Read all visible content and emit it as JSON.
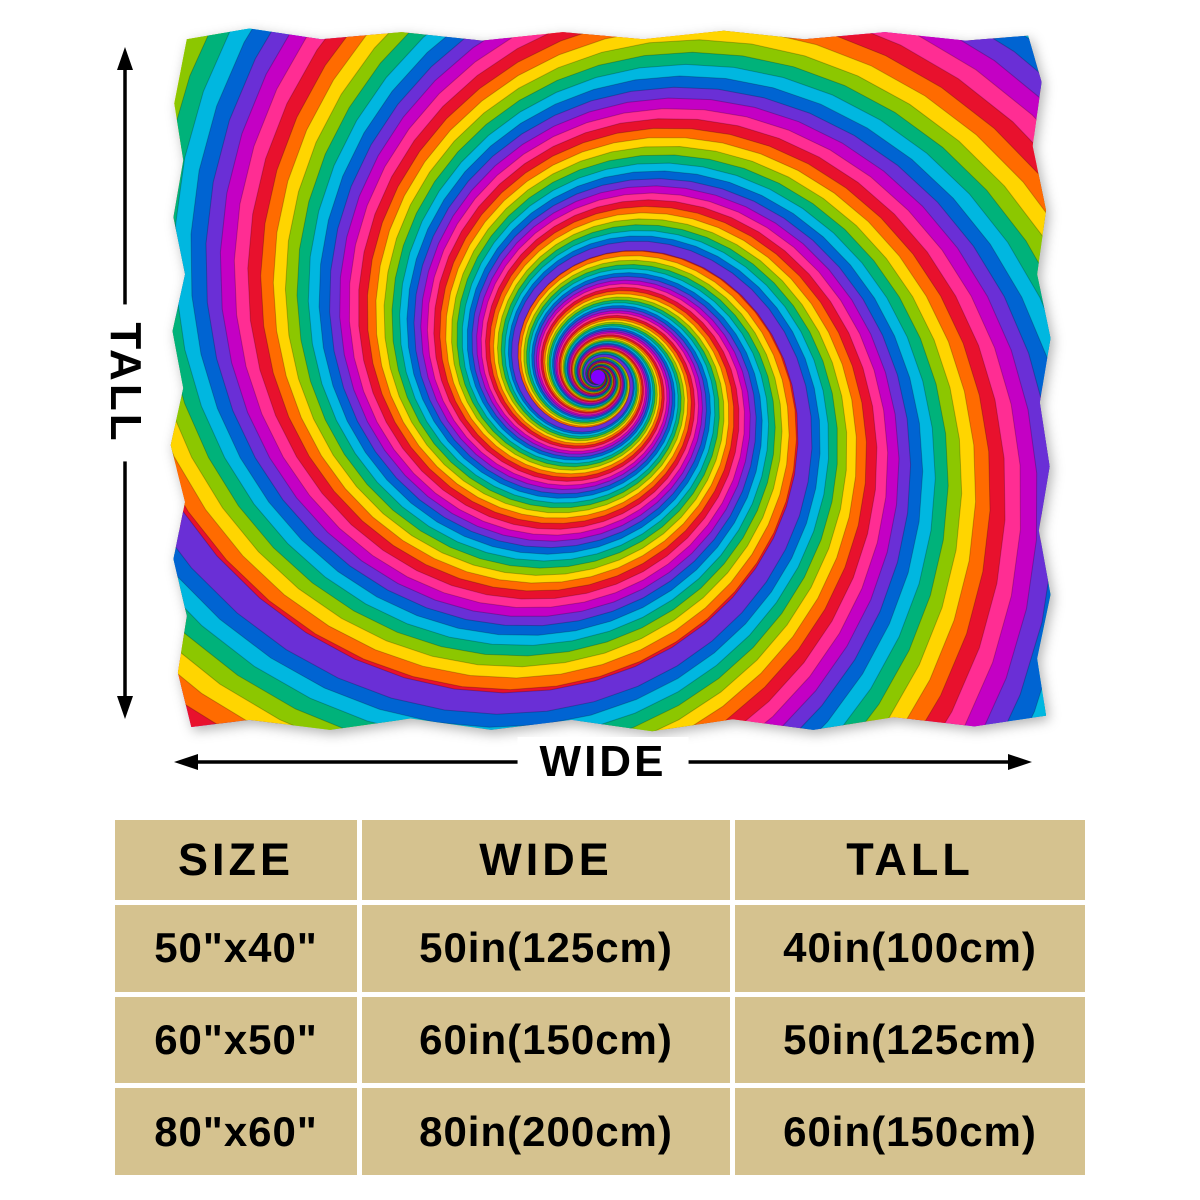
{
  "diagram": {
    "tall_label": "TALL",
    "wide_label": "WIDE"
  },
  "size_table": {
    "headers": [
      "SIZE",
      "WIDE",
      "TALL"
    ],
    "rows": [
      [
        "50\"x40\"",
        "50in(125cm)",
        "40in(100cm)"
      ],
      [
        "60\"x50\"",
        "60in(150cm)",
        "50in(125cm)"
      ],
      [
        "80\"x60\"",
        "80in(200cm)",
        "60in(150cm)"
      ]
    ]
  },
  "colors": {
    "table_bg": "#d5c28f",
    "table_border": "#ffffff",
    "text": "#000000",
    "spiral_palette": [
      "#e8112d",
      "#ff6b00",
      "#ffd500",
      "#8cc700",
      "#00b27a",
      "#00b7e0",
      "#0064d2",
      "#6a2fd6",
      "#c400c4",
      "#ff2d93"
    ]
  }
}
